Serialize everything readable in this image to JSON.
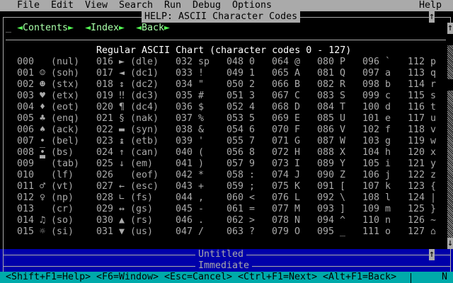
{
  "menubar": {
    "items": [
      "File",
      "Edit",
      "View",
      "Search",
      "Run",
      "Debug",
      "Options"
    ],
    "help": "Help"
  },
  "help_window": {
    "title": "HELP: ASCII Character Codes",
    "maximize_icon": "↑",
    "cursor": "_",
    "nav_buttons": [
      "Contents",
      "Index",
      "Back"
    ],
    "heading": "Regular ASCII Chart (character codes 0 - 127)",
    "scroll_up_icon": "↑",
    "scroll_down_icon": "↓"
  },
  "ascii_chart": {
    "columns": [
      [
        [
          "000",
          "",
          "(nul)"
        ],
        [
          "001",
          "☺",
          "(soh)"
        ],
        [
          "002",
          "☻",
          "(stx)"
        ],
        [
          "003",
          "♥",
          "(etx)"
        ],
        [
          "004",
          "♦",
          "(eot)"
        ],
        [
          "005",
          "♣",
          "(enq)"
        ],
        [
          "006",
          "♠",
          "(ack)"
        ],
        [
          "007",
          "•",
          "(bel)"
        ],
        [
          "008",
          "◘",
          "(bs)"
        ],
        [
          "009",
          "",
          "(tab)"
        ],
        [
          "010",
          "",
          "(lf)"
        ],
        [
          "011",
          "♂",
          "(vt)"
        ],
        [
          "012",
          "♀",
          "(np)"
        ],
        [
          "013",
          "",
          "(cr)"
        ],
        [
          "014",
          "♫",
          "(so)"
        ],
        [
          "015",
          "☼",
          "(si)"
        ]
      ],
      [
        [
          "016",
          "►",
          "(dle)"
        ],
        [
          "017",
          "◄",
          "(dc1)"
        ],
        [
          "018",
          "↕",
          "(dc2)"
        ],
        [
          "019",
          "‼",
          "(dc3)"
        ],
        [
          "020",
          "¶",
          "(dc4)"
        ],
        [
          "021",
          "§",
          "(nak)"
        ],
        [
          "022",
          "▬",
          "(syn)"
        ],
        [
          "023",
          "↨",
          "(etb)"
        ],
        [
          "024",
          "↑",
          "(can)"
        ],
        [
          "025",
          "↓",
          "(em)"
        ],
        [
          "026",
          "",
          "(eof)"
        ],
        [
          "027",
          "←",
          "(esc)"
        ],
        [
          "028",
          "∟",
          "(fs)"
        ],
        [
          "029",
          "↔",
          "(gs)"
        ],
        [
          "030",
          "▲",
          "(rs)"
        ],
        [
          "031",
          "▼",
          "(us)"
        ]
      ],
      [
        [
          "032",
          "sp"
        ],
        [
          "033",
          "!"
        ],
        [
          "034",
          "\""
        ],
        [
          "035",
          "#"
        ],
        [
          "036",
          "$"
        ],
        [
          "037",
          "%"
        ],
        [
          "038",
          "&"
        ],
        [
          "039",
          "'"
        ],
        [
          "040",
          "("
        ],
        [
          "041",
          ")"
        ],
        [
          "042",
          "*"
        ],
        [
          "043",
          "+"
        ],
        [
          "044",
          ","
        ],
        [
          "045",
          "-"
        ],
        [
          "046",
          "."
        ],
        [
          "047",
          "/"
        ]
      ],
      [
        [
          "048",
          "0"
        ],
        [
          "049",
          "1"
        ],
        [
          "050",
          "2"
        ],
        [
          "051",
          "3"
        ],
        [
          "052",
          "4"
        ],
        [
          "053",
          "5"
        ],
        [
          "054",
          "6"
        ],
        [
          "055",
          "7"
        ],
        [
          "056",
          "8"
        ],
        [
          "057",
          "9"
        ],
        [
          "058",
          ":"
        ],
        [
          "059",
          ";"
        ],
        [
          "060",
          "<"
        ],
        [
          "061",
          "="
        ],
        [
          "062",
          ">"
        ],
        [
          "063",
          "?"
        ]
      ],
      [
        [
          "064",
          "@"
        ],
        [
          "065",
          "A"
        ],
        [
          "066",
          "B"
        ],
        [
          "067",
          "C"
        ],
        [
          "068",
          "D"
        ],
        [
          "069",
          "E"
        ],
        [
          "070",
          "F"
        ],
        [
          "071",
          "G"
        ],
        [
          "072",
          "H"
        ],
        [
          "073",
          "I"
        ],
        [
          "074",
          "J"
        ],
        [
          "075",
          "K"
        ],
        [
          "076",
          "L"
        ],
        [
          "077",
          "M"
        ],
        [
          "078",
          "N"
        ],
        [
          "079",
          "O"
        ]
      ],
      [
        [
          "080",
          "P"
        ],
        [
          "081",
          "Q"
        ],
        [
          "082",
          "R"
        ],
        [
          "083",
          "S"
        ],
        [
          "084",
          "T"
        ],
        [
          "085",
          "U"
        ],
        [
          "086",
          "V"
        ],
        [
          "087",
          "W"
        ],
        [
          "088",
          "X"
        ],
        [
          "089",
          "Y"
        ],
        [
          "090",
          "Z"
        ],
        [
          "091",
          "["
        ],
        [
          "092",
          "\\"
        ],
        [
          "093",
          "]"
        ],
        [
          "094",
          "^"
        ],
        [
          "095",
          "_"
        ]
      ],
      [
        [
          "096",
          "`"
        ],
        [
          "097",
          "a"
        ],
        [
          "098",
          "b"
        ],
        [
          "099",
          "c"
        ],
        [
          "100",
          "d"
        ],
        [
          "101",
          "e"
        ],
        [
          "102",
          "f"
        ],
        [
          "103",
          "g"
        ],
        [
          "104",
          "h"
        ],
        [
          "105",
          "i"
        ],
        [
          "106",
          "j"
        ],
        [
          "107",
          "k"
        ],
        [
          "108",
          "l"
        ],
        [
          "109",
          "m"
        ],
        [
          "110",
          "n"
        ],
        [
          "111",
          "o"
        ]
      ],
      [
        [
          "112",
          "p"
        ],
        [
          "113",
          "q"
        ],
        [
          "114",
          "r"
        ],
        [
          "115",
          "s"
        ],
        [
          "116",
          "t"
        ],
        [
          "117",
          "u"
        ],
        [
          "118",
          "v"
        ],
        [
          "119",
          "w"
        ],
        [
          "120",
          "x"
        ],
        [
          "121",
          "y"
        ],
        [
          "122",
          "z"
        ],
        [
          "123",
          "{"
        ],
        [
          "124",
          "|"
        ],
        [
          "125",
          "}"
        ],
        [
          "126",
          "~"
        ],
        [
          "127",
          "⌂"
        ]
      ]
    ]
  },
  "editor": {
    "title": "Untitled",
    "maximize_icon": "↑"
  },
  "immediate": {
    "title": "Immediate"
  },
  "statusbar": {
    "hints": [
      "<Shift+F1=Help>",
      "<F6=Window>",
      "<Esc=Cancel>",
      "<Ctrl+F1=Next>",
      "<Alt+F1=Back>"
    ],
    "indicator": "N"
  },
  "colors": {
    "background": "#000000",
    "text": "#aaaaaa",
    "menu": "#aaaaaa",
    "button": "#55ff55",
    "heading": "#ffffff",
    "blue_panel": "#0000aa",
    "status": "#00aaaa"
  }
}
